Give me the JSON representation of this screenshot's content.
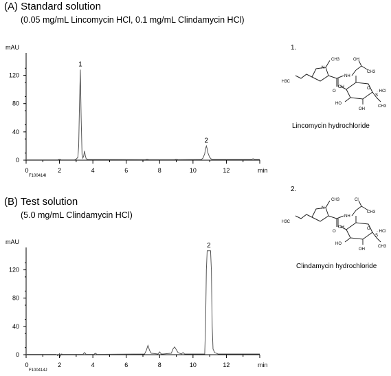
{
  "panel_a": {
    "title": "(A) Standard solution",
    "subtitle": "(0.05 mg/mL Lincomycin HCl, 0.1 mg/mL Clindamycin HCl)",
    "figure_code": "F100414I"
  },
  "panel_b": {
    "title": "(B) Test solution",
    "subtitle": "(5.0 mg/mL Clindamycin HCl)",
    "figure_code": "F100414J"
  },
  "compound_1": {
    "number": "1.",
    "name": "Lincomycin hydrochloride",
    "oh_label": "OH",
    "hcl_label": "· HCl"
  },
  "compound_2": {
    "number": "2.",
    "name": "Clindamycin hydrochloride",
    "cl_label": "Cl",
    "hcl_label": "· HCl"
  },
  "structure_labels": {
    "ch3": "CH3",
    "h3c": "H3C",
    "n": "N",
    "o": "O",
    "nh": "NH",
    "s": "S",
    "oh": "OH",
    "ho": "HO"
  },
  "colors": {
    "trace": "#555555",
    "axis": "#000000"
  },
  "chart_data": [
    {
      "type": "line",
      "title": "(A) Standard solution",
      "xlabel": "min",
      "ylabel": "mAU",
      "xlim": [
        0,
        14
      ],
      "ylim": [
        0,
        140
      ],
      "xticks": [
        0,
        2,
        4,
        6,
        8,
        10,
        12
      ],
      "yticks": [
        0,
        40,
        80,
        120
      ],
      "peak_labels": [
        {
          "label": "1",
          "x": 3.25,
          "y": 128
        },
        {
          "label": "2",
          "x": 10.8,
          "y": 20
        }
      ],
      "series": [
        {
          "x": [
            0,
            1.9,
            2.0,
            2.1,
            2.9,
            3.0,
            3.1,
            3.15,
            3.2,
            3.25,
            3.3,
            3.35,
            3.4,
            3.45,
            3.5,
            3.55,
            3.6,
            3.7,
            7.15,
            7.25,
            7.35,
            8.9,
            9.0,
            9.1,
            10.5,
            10.6,
            10.7,
            10.75,
            10.8,
            10.85,
            10.9,
            11.0,
            11.1,
            11.2,
            13.5,
            13.6,
            13.7,
            14
          ],
          "y": [
            0.5,
            0.5,
            1.5,
            0.5,
            0.5,
            1.5,
            4,
            20,
            80,
            128,
            60,
            8,
            3,
            6,
            13,
            6,
            2,
            1,
            0.8,
            1.5,
            0.8,
            0.8,
            1.5,
            0.8,
            1,
            3,
            9,
            16,
            20,
            16,
            10,
            4,
            1.5,
            1,
            1,
            2,
            1,
            1
          ]
        }
      ]
    },
    {
      "type": "line",
      "title": "(B) Test solution",
      "xlabel": "min",
      "ylabel": "mAU",
      "xlim": [
        0,
        14
      ],
      "ylim": [
        0,
        140
      ],
      "xticks": [
        0,
        2,
        4,
        6,
        8,
        10,
        12
      ],
      "yticks": [
        0,
        40,
        80,
        120
      ],
      "peak_labels": [
        {
          "label": "2",
          "x": 10.95,
          "y": 150
        }
      ],
      "series": [
        {
          "x": [
            0,
            1.8,
            1.9,
            2.0,
            2.05,
            2.1,
            2.2,
            3.4,
            3.5,
            3.6,
            4.05,
            4.15,
            4.25,
            7.1,
            7.2,
            7.3,
            7.4,
            7.5,
            7.9,
            8.0,
            8.1,
            8.2,
            8.7,
            8.8,
            8.9,
            9.0,
            9.1,
            9.3,
            9.4,
            9.5,
            10.7,
            10.75,
            10.8,
            10.85,
            11.05,
            11.1,
            11.15,
            11.2,
            11.3,
            11.5,
            12.0,
            14
          ],
          "y": [
            0.5,
            0.5,
            -1.5,
            1.5,
            -2,
            1,
            0.5,
            0.5,
            3,
            0.5,
            0.5,
            2,
            0.5,
            1,
            6,
            13,
            6,
            2,
            1,
            4,
            1,
            1,
            2,
            8,
            11,
            7,
            3,
            1,
            3,
            1,
            1,
            40,
            120,
            150,
            150,
            120,
            40,
            8,
            3,
            1,
            1,
            1
          ]
        }
      ]
    }
  ]
}
